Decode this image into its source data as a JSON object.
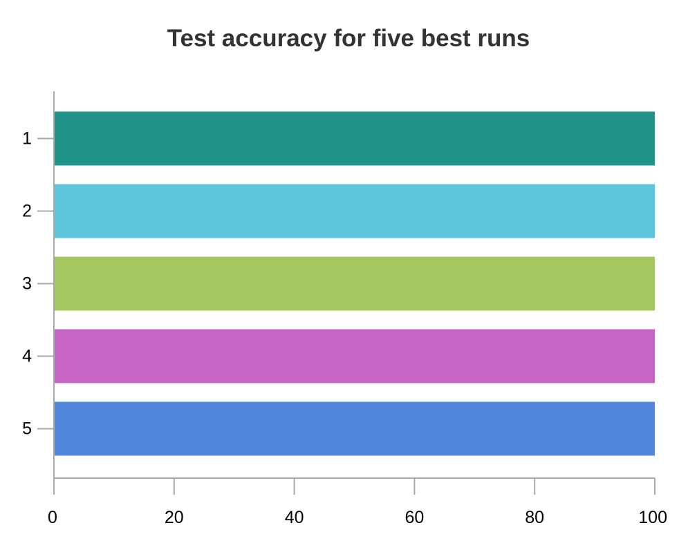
{
  "chart_data": {
    "type": "bar",
    "orientation": "horizontal",
    "title": "Test accuracy for five best runs",
    "xlabel": "",
    "ylabel": "",
    "categories": [
      "1",
      "2",
      "3",
      "4",
      "5"
    ],
    "values": [
      100,
      100,
      100,
      100,
      100
    ],
    "colors": [
      "#219489",
      "#5bc5dc",
      "#a2c75f",
      "#c465c4",
      "#5287dc"
    ],
    "xlim": [
      0,
      100
    ],
    "x_ticks": [
      0,
      20,
      40,
      60,
      80,
      100
    ],
    "grid": false,
    "legend": "none"
  }
}
